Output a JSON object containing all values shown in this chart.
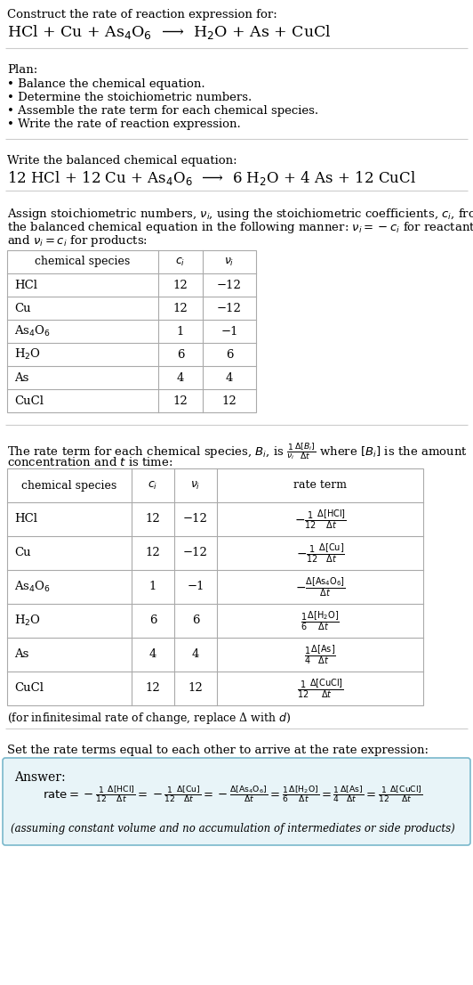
{
  "title_line1": "Construct the rate of reaction expression for:",
  "title_line2": "HCl + Cu + As$_4$O$_6$  ⟶  H$_2$O + As + CuCl",
  "plan_header": "Plan:",
  "plan_items": [
    "• Balance the chemical equation.",
    "• Determine the stoichiometric numbers.",
    "• Assemble the rate term for each chemical species.",
    "• Write the rate of reaction expression."
  ],
  "balanced_header": "Write the balanced chemical equation:",
  "balanced_eq": "12 HCl + 12 Cu + As$_4$O$_6$  ⟶  6 H$_2$O + 4 As + 12 CuCl",
  "stoich_intro": "Assign stoichiometric numbers, $\\nu_i$, using the stoichiometric coefficients, $c_i$, from the balanced chemical equation in the following manner: $\\nu_i = -c_i$ for reactants and $\\nu_i = c_i$ for products:",
  "table1_headers": [
    "chemical species",
    "$c_i$",
    "$\\nu_i$"
  ],
  "table1_rows": [
    [
      "HCl",
      "12",
      "−12"
    ],
    [
      "Cu",
      "12",
      "−12"
    ],
    [
      "As$_4$O$_6$",
      "1",
      "−1"
    ],
    [
      "H$_2$O",
      "6",
      "6"
    ],
    [
      "As",
      "4",
      "4"
    ],
    [
      "CuCl",
      "12",
      "12"
    ]
  ],
  "rate_term_intro1": "The rate term for each chemical species, $B_i$, is $\\frac{1}{\\nu_i}\\frac{\\Delta[B_i]}{\\Delta t}$ where $[B_i]$ is the amount",
  "rate_term_intro2": "concentration and $t$ is time:",
  "table2_headers": [
    "chemical species",
    "$c_i$",
    "$\\nu_i$",
    "rate term"
  ],
  "table2_rows": [
    [
      "HCl",
      "12",
      "−12",
      "$-\\frac{1}{12}\\frac{\\Delta[\\mathrm{HCl}]}{\\Delta t}$"
    ],
    [
      "Cu",
      "12",
      "−12",
      "$-\\frac{1}{12}\\frac{\\Delta[\\mathrm{Cu}]}{\\Delta t}$"
    ],
    [
      "As$_4$O$_6$",
      "1",
      "−1",
      "$-\\frac{\\Delta[\\mathrm{As_4O_6}]}{\\Delta t}$"
    ],
    [
      "H$_2$O",
      "6",
      "6",
      "$\\frac{1}{6}\\frac{\\Delta[\\mathrm{H_2O}]}{\\Delta t}$"
    ],
    [
      "As",
      "4",
      "4",
      "$\\frac{1}{4}\\frac{\\Delta[\\mathrm{As}]}{\\Delta t}$"
    ],
    [
      "CuCl",
      "12",
      "12",
      "$\\frac{1}{12}\\frac{\\Delta[\\mathrm{CuCl}]}{\\Delta t}$"
    ]
  ],
  "infinitesimal_note": "(for infinitesimal rate of change, replace Δ with $d$)",
  "set_equal_header": "Set the rate terms equal to each other to arrive at the rate expression:",
  "answer_label": "Answer:",
  "rate_expression": "$\\mathrm{rate} = -\\frac{1}{12}\\frac{\\Delta[\\mathrm{HCl}]}{\\Delta t} = -\\frac{1}{12}\\frac{\\Delta[\\mathrm{Cu}]}{\\Delta t} = -\\frac{\\Delta[\\mathrm{As_4O_6}]}{\\Delta t} = \\frac{1}{6}\\frac{\\Delta[\\mathrm{H_2O}]}{\\Delta t} = \\frac{1}{4}\\frac{\\Delta[\\mathrm{As}]}{\\Delta t} = \\frac{1}{12}\\frac{\\Delta[\\mathrm{CuCl}]}{\\Delta t}$",
  "assuming_note": "(assuming constant volume and no accumulation of intermediates or side products)",
  "bg_color": "#ffffff",
  "answer_box_color": "#e8f4f8",
  "answer_box_border": "#7ab8cc",
  "text_color": "#000000",
  "line_color": "#cccccc"
}
